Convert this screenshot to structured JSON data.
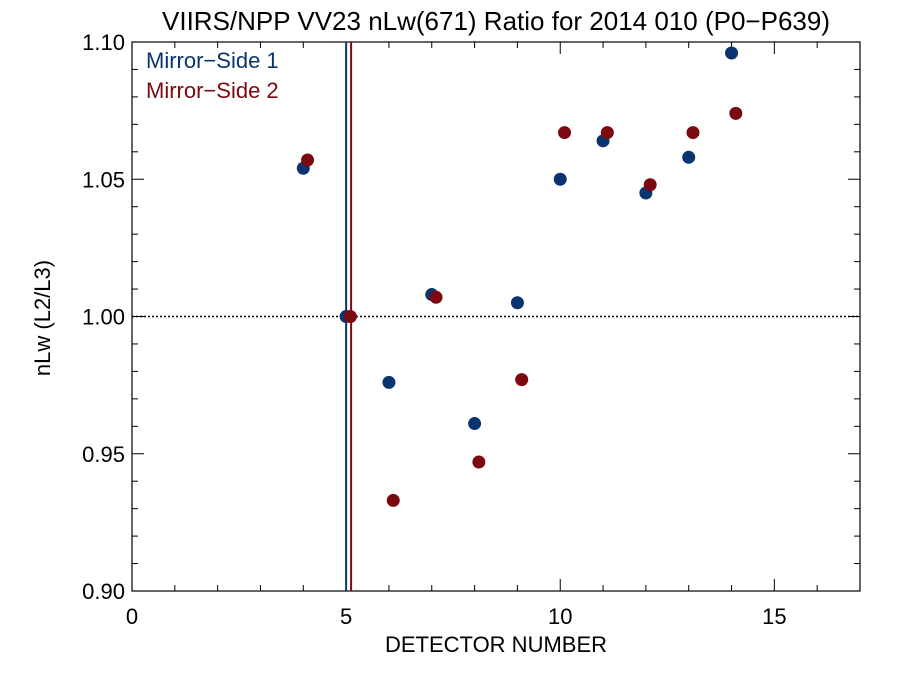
{
  "chart_data": {
    "type": "scatter",
    "title": "VIIRS/NPP VV23 nLw(671) Ratio for 2014 010 (P0−P639)",
    "xlabel": "DETECTOR NUMBER",
    "ylabel": "nLw (L2/L3)",
    "xlim": [
      0,
      17
    ],
    "ylim": [
      0.9,
      1.1
    ],
    "xticks": [
      0,
      5,
      10,
      15
    ],
    "xtick_labels": [
      "0",
      "5",
      "10",
      "15"
    ],
    "yticks": [
      0.9,
      0.95,
      1.0,
      1.05,
      1.1
    ],
    "ytick_labels": [
      "0.90",
      "0.95",
      "1.00",
      "1.05",
      "1.10"
    ],
    "reference_line_y": 1.0,
    "reference_line_x": 5,
    "grid": false,
    "legend_position": "top-left",
    "series": [
      {
        "name": "Mirror−Side 1",
        "color": "#0a3470",
        "x": [
          4,
          5,
          6,
          7,
          8,
          9,
          10,
          11,
          12,
          13,
          14
        ],
        "y": [
          1.054,
          1.0,
          0.976,
          1.008,
          0.961,
          1.005,
          1.05,
          1.064,
          1.045,
          1.058,
          1.096
        ]
      },
      {
        "name": "Mirror−Side 2",
        "color": "#7a0a0f",
        "x": [
          4.1,
          5.1,
          6.1,
          7.1,
          8.1,
          9.1,
          10.1,
          11.1,
          12.1,
          13.1,
          14.1
        ],
        "y": [
          1.057,
          1.0,
          0.933,
          1.007,
          0.947,
          0.977,
          1.067,
          1.067,
          1.048,
          1.067,
          1.074
        ]
      }
    ]
  }
}
